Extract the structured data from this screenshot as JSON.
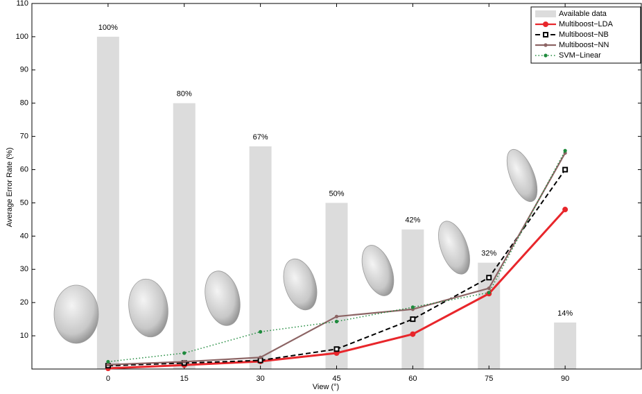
{
  "chart_data": {
    "type": "combo",
    "x_label": "View (°)",
    "y_label": "Average Error Rate (%)",
    "x": [
      0,
      15,
      30,
      45,
      60,
      75,
      90
    ],
    "xlim": [
      -15,
      105
    ],
    "xticks": [
      0,
      15,
      30,
      45,
      60,
      75,
      90
    ],
    "ylim": [
      0,
      110
    ],
    "yticks": [
      10,
      20,
      30,
      40,
      50,
      60,
      70,
      80,
      90,
      100,
      110
    ],
    "legend": "upper right",
    "series": [
      {
        "name": "Available data",
        "type": "bar",
        "color": "#dcdcdc",
        "values": [
          100,
          80,
          67,
          50,
          42,
          32,
          14
        ],
        "value_labels": [
          "100%",
          "80%",
          "67%",
          "50%",
          "42%",
          "32%",
          "14%"
        ]
      },
      {
        "name": "Multiboost−LDA",
        "type": "line",
        "color": "#e8262b",
        "linestyle": "solid",
        "marker": "circle",
        "values": [
          0.2,
          1.2,
          2.3,
          4.8,
          10.5,
          22.7,
          48
        ]
      },
      {
        "name": "Multiboost−NB",
        "type": "line",
        "color": "#000000",
        "linestyle": "dashed",
        "marker": "square",
        "values": [
          1,
          1.8,
          2.6,
          6,
          15,
          27.5,
          60
        ]
      },
      {
        "name": "Multiboost−NN",
        "type": "line",
        "color": "#8c6464",
        "linestyle": "solid",
        "marker": "dot",
        "values": [
          1.3,
          2.2,
          3.5,
          15.8,
          18,
          24.3,
          65
        ]
      },
      {
        "name": "SVM−Linear",
        "type": "line",
        "color": "#1e8a3c",
        "linestyle": "dotted",
        "marker": "dot",
        "values": [
          2.2,
          4.8,
          11.2,
          14.3,
          18.6,
          23,
          65.7
        ]
      }
    ]
  }
}
